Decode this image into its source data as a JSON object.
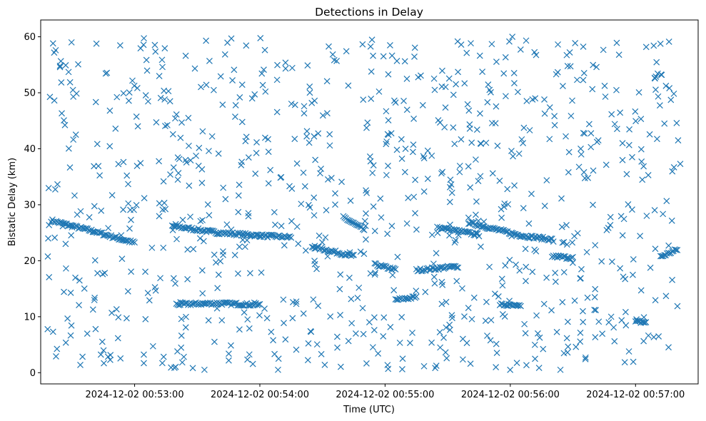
{
  "colors": {
    "marker": "#1f77b4",
    "axis": "#000000",
    "background": "#ffffff"
  },
  "chart_data": {
    "type": "scatter",
    "marker": "x",
    "title": "Detections in Delay",
    "xlabel": "Time (UTC)",
    "ylabel": "Bistatic Delay (km)",
    "grid": false,
    "legend": "none",
    "x_axis_type": "datetime",
    "xlim": [
      "2024-12-02 00:52:15",
      "2024-12-02 00:57:30"
    ],
    "ylim": [
      -2,
      63
    ],
    "x_ticks": [
      "2024-12-02 00:53:00",
      "2024-12-02 00:54:00",
      "2024-12-02 00:55:00",
      "2024-12-02 00:56:00",
      "2024-12-02 00:57:00"
    ],
    "y_ticks": [
      "0",
      "10",
      "20",
      "30",
      "40",
      "50",
      "60"
    ],
    "tracks": [
      {
        "name": "",
        "points": [
          [
            "2024-12-02 00:52:20",
            27.2
          ],
          [
            "2024-12-02 00:52:30",
            26.2
          ],
          [
            "2024-12-02 00:52:40",
            25.3
          ],
          [
            "2024-12-02 00:52:50",
            24.2
          ],
          [
            "2024-12-02 00:53:00",
            23.2
          ]
        ]
      },
      {
        "name": "",
        "points": [
          [
            "2024-12-02 00:53:18",
            26.2
          ],
          [
            "2024-12-02 00:53:40",
            25.0
          ],
          [
            "2024-12-02 00:54:00",
            24.5
          ],
          [
            "2024-12-02 00:54:15",
            24.2
          ]
        ]
      },
      {
        "name": "",
        "points": [
          [
            "2024-12-02 00:53:20",
            12.2
          ],
          [
            "2024-12-02 00:53:40",
            12.4
          ],
          [
            "2024-12-02 00:54:00",
            12.1
          ]
        ]
      },
      {
        "name": "",
        "points": [
          [
            "2024-12-02 00:54:25",
            22.5
          ],
          [
            "2024-12-02 00:54:45",
            20.8
          ]
        ]
      },
      {
        "name": "",
        "points": [
          [
            "2024-12-02 00:54:40",
            27.8
          ],
          [
            "2024-12-02 00:54:50",
            25.5
          ]
        ]
      },
      {
        "name": "",
        "points": [
          [
            "2024-12-02 00:54:55",
            19.3
          ],
          [
            "2024-12-02 00:55:05",
            18.4
          ]
        ]
      },
      {
        "name": "",
        "points": [
          [
            "2024-12-02 00:55:05",
            13.0
          ],
          [
            "2024-12-02 00:55:15",
            13.5
          ]
        ]
      },
      {
        "name": "",
        "points": [
          [
            "2024-12-02 00:55:15",
            18.3
          ],
          [
            "2024-12-02 00:55:35",
            19.0
          ]
        ]
      },
      {
        "name": "",
        "points": [
          [
            "2024-12-02 00:55:25",
            26.0
          ],
          [
            "2024-12-02 00:55:45",
            24.6
          ]
        ]
      },
      {
        "name": "",
        "points": [
          [
            "2024-12-02 00:55:40",
            26.8
          ],
          [
            "2024-12-02 00:56:05",
            24.5
          ],
          [
            "2024-12-02 00:56:20",
            23.8
          ]
        ]
      },
      {
        "name": "",
        "points": [
          [
            "2024-12-02 00:55:55",
            12.2
          ],
          [
            "2024-12-02 00:56:05",
            11.8
          ]
        ]
      },
      {
        "name": "",
        "points": [
          [
            "2024-12-02 00:56:20",
            20.8
          ],
          [
            "2024-12-02 00:56:30",
            20.5
          ]
        ]
      },
      {
        "name": "",
        "points": [
          [
            "2024-12-02 00:57:00",
            9.1
          ],
          [
            "2024-12-02 00:57:05",
            9.0
          ]
        ]
      },
      {
        "name": "",
        "points": [
          [
            "2024-12-02 00:57:12",
            20.7
          ],
          [
            "2024-12-02 00:57:20",
            22.0
          ]
        ]
      }
    ],
    "noise": {
      "count": 880,
      "time_range": [
        "2024-12-02 00:52:18",
        "2024-12-02 00:57:22"
      ],
      "delay_range": [
        0.5,
        60
      ]
    }
  }
}
